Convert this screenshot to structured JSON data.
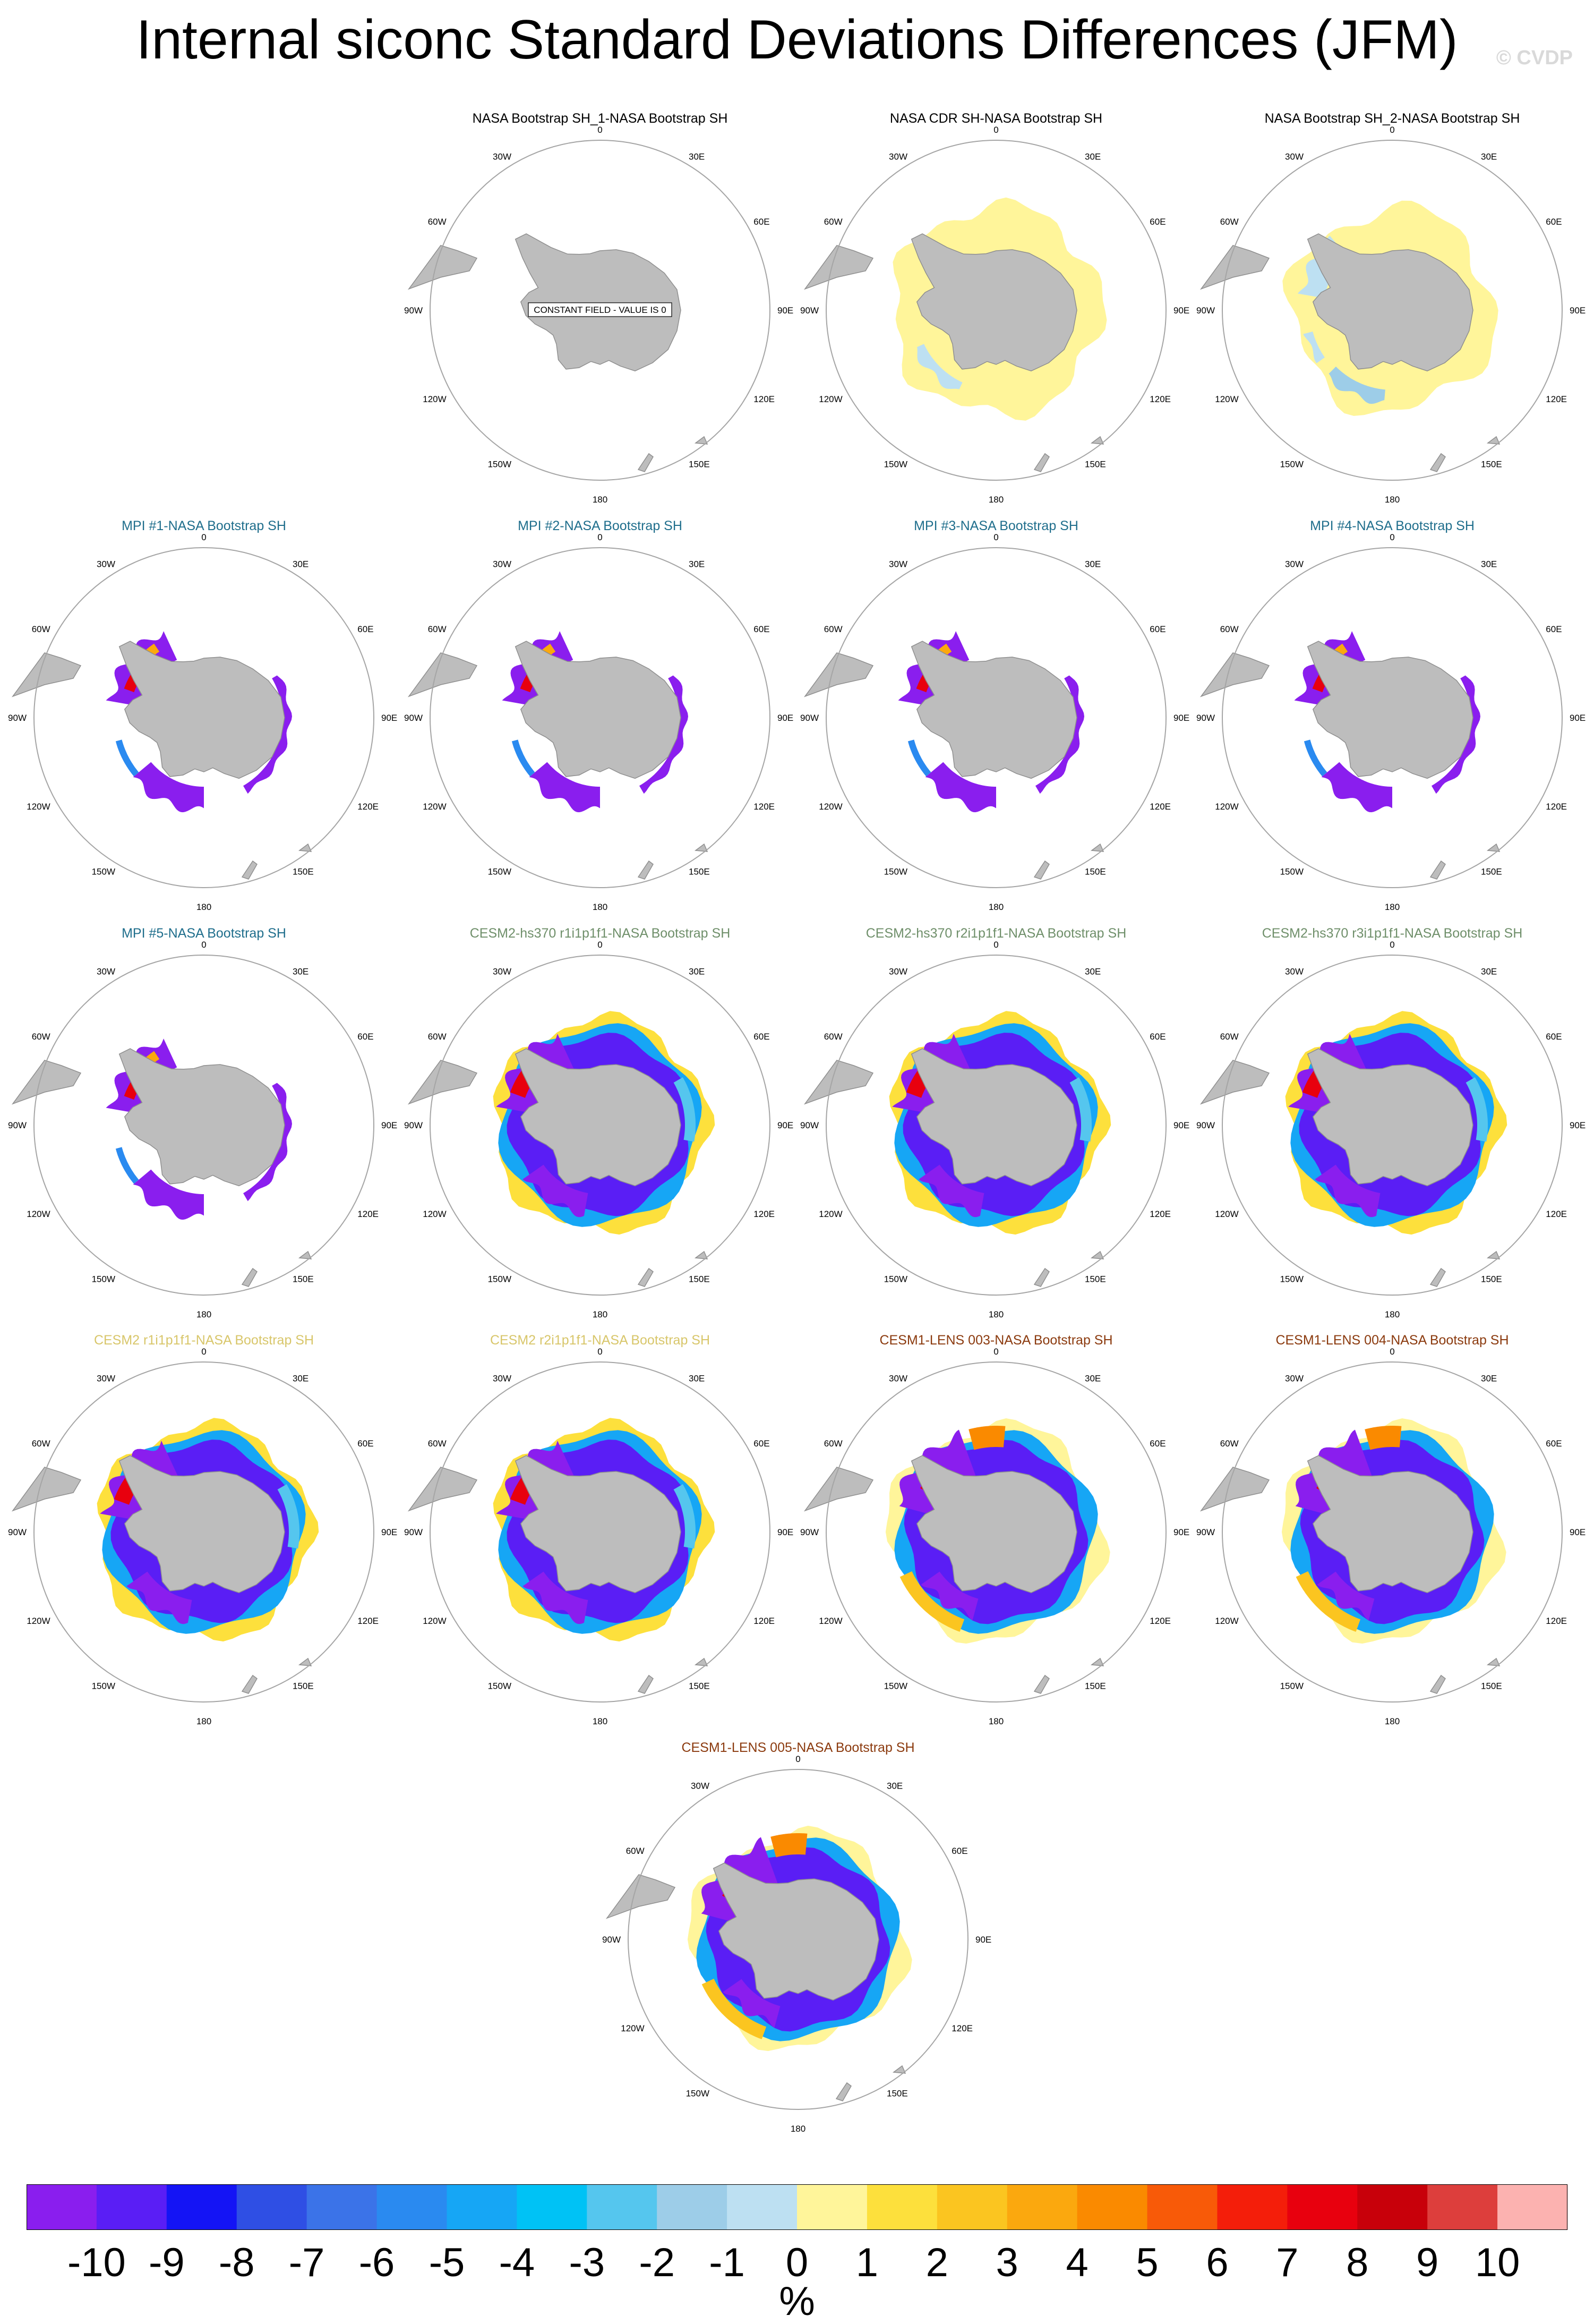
{
  "title": "Internal siconc Standard Deviations Differences (JFM)",
  "copyright": "© CVDP",
  "map_labels": {
    "top": "0",
    "bottom": "180",
    "upper_left": "30W",
    "upper_right": "30E",
    "left_upper": "60W",
    "right_upper": "60E",
    "left": "90W",
    "right": "90E",
    "left_lower": "120W",
    "right_lower": "120E",
    "lower_left": "150W",
    "lower_right": "150E"
  },
  "constant_field_note": "CONSTANT FIELD - VALUE IS 0",
  "panels": [
    {
      "title": "NASA Bootstrap SH_1-NASA Bootstrap SH",
      "title_color": "#000000",
      "pattern": "constant"
    },
    {
      "title": "NASA CDR SH-NASA Bootstrap SH",
      "title_color": "#000000",
      "pattern": "cdr"
    },
    {
      "title": "NASA Bootstrap SH_2-NASA Bootstrap SH",
      "title_color": "#000000",
      "pattern": "bs2"
    },
    {
      "title": "MPI #1-NASA Bootstrap SH",
      "title_color": "#1f6e8c",
      "pattern": "mpi"
    },
    {
      "title": "MPI #2-NASA Bootstrap SH",
      "title_color": "#1f6e8c",
      "pattern": "mpi"
    },
    {
      "title": "MPI #3-NASA Bootstrap SH",
      "title_color": "#1f6e8c",
      "pattern": "mpi"
    },
    {
      "title": "MPI #4-NASA Bootstrap SH",
      "title_color": "#1f6e8c",
      "pattern": "mpi"
    },
    {
      "title": "MPI #5-NASA Bootstrap SH",
      "title_color": "#1f6e8c",
      "pattern": "mpi"
    },
    {
      "title": "CESM2-hs370 r1i1p1f1-NASA Bootstrap SH",
      "title_color": "#6f8f6a",
      "pattern": "cesm"
    },
    {
      "title": "CESM2-hs370 r2i1p1f1-NASA Bootstrap SH",
      "title_color": "#6f8f6a",
      "pattern": "cesm"
    },
    {
      "title": "CESM2-hs370 r3i1p1f1-NASA Bootstrap SH",
      "title_color": "#6f8f6a",
      "pattern": "cesm"
    },
    {
      "title": "CESM2 r1i1p1f1-NASA Bootstrap SH",
      "title_color": "#d8c66a",
      "pattern": "cesm"
    },
    {
      "title": "CESM2 r2i1p1f1-NASA Bootstrap SH",
      "title_color": "#d8c66a",
      "pattern": "cesm"
    },
    {
      "title": "CESM1-LENS 003-NASA Bootstrap SH",
      "title_color": "#8b3a0e",
      "pattern": "lens"
    },
    {
      "title": "CESM1-LENS 004-NASA Bootstrap SH",
      "title_color": "#8b3a0e",
      "pattern": "lens"
    },
    {
      "title": "CESM1-LENS 005-NASA Bootstrap SH",
      "title_color": "#8b3a0e",
      "pattern": "lens"
    }
  ],
  "colorbar": {
    "colors": [
      "#8a1eee",
      "#5a1ef5",
      "#1414f5",
      "#2f4fe4",
      "#3b73e8",
      "#2a8af0",
      "#16a6f5",
      "#00c2f5",
      "#55c6ee",
      "#9dcde8",
      "#bde0f2",
      "#fff59a",
      "#fde03c",
      "#fbc520",
      "#fba80e",
      "#fa8a00",
      "#f85a08",
      "#f41e0a",
      "#e8000e",
      "#c8000a",
      "#dd3e3c",
      "#fcb2b0"
    ],
    "labels": [
      "-10",
      "-9",
      "-8",
      "-7",
      "-6",
      "-5",
      "-4",
      "-3",
      "-2",
      "-1",
      "0",
      "1",
      "2",
      "3",
      "4",
      "5",
      "6",
      "7",
      "8",
      "9",
      "10"
    ],
    "unit": "%"
  }
}
